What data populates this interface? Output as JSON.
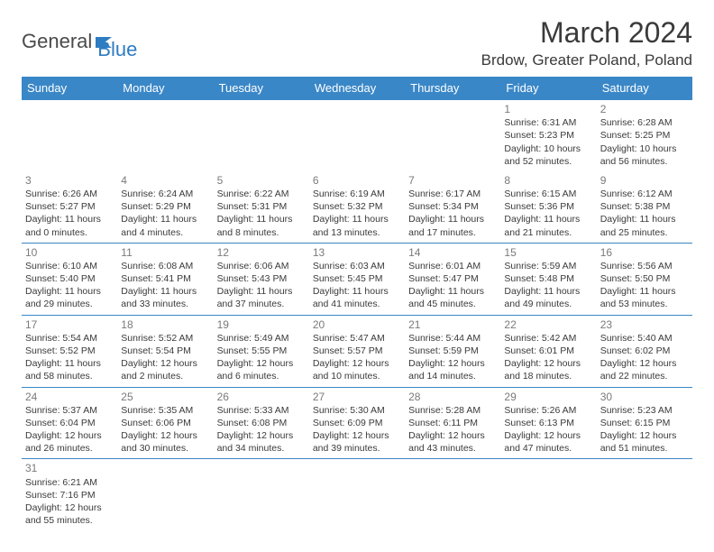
{
  "logo": {
    "part1": "General",
    "part2": "Blue"
  },
  "title": "March 2024",
  "location": "Brdow, Greater Poland, Poland",
  "header_bg": "#3a87c7",
  "row_border_color": "#3a87c7",
  "days": [
    "Sunday",
    "Monday",
    "Tuesday",
    "Wednesday",
    "Thursday",
    "Friday",
    "Saturday"
  ],
  "weeks": [
    [
      null,
      null,
      null,
      null,
      null,
      {
        "n": "1",
        "sr": "Sunrise: 6:31 AM",
        "ss": "Sunset: 5:23 PM",
        "dl1": "Daylight: 10 hours",
        "dl2": "and 52 minutes."
      },
      {
        "n": "2",
        "sr": "Sunrise: 6:28 AM",
        "ss": "Sunset: 5:25 PM",
        "dl1": "Daylight: 10 hours",
        "dl2": "and 56 minutes."
      }
    ],
    [
      {
        "n": "3",
        "sr": "Sunrise: 6:26 AM",
        "ss": "Sunset: 5:27 PM",
        "dl1": "Daylight: 11 hours",
        "dl2": "and 0 minutes."
      },
      {
        "n": "4",
        "sr": "Sunrise: 6:24 AM",
        "ss": "Sunset: 5:29 PM",
        "dl1": "Daylight: 11 hours",
        "dl2": "and 4 minutes."
      },
      {
        "n": "5",
        "sr": "Sunrise: 6:22 AM",
        "ss": "Sunset: 5:31 PM",
        "dl1": "Daylight: 11 hours",
        "dl2": "and 8 minutes."
      },
      {
        "n": "6",
        "sr": "Sunrise: 6:19 AM",
        "ss": "Sunset: 5:32 PM",
        "dl1": "Daylight: 11 hours",
        "dl2": "and 13 minutes."
      },
      {
        "n": "7",
        "sr": "Sunrise: 6:17 AM",
        "ss": "Sunset: 5:34 PM",
        "dl1": "Daylight: 11 hours",
        "dl2": "and 17 minutes."
      },
      {
        "n": "8",
        "sr": "Sunrise: 6:15 AM",
        "ss": "Sunset: 5:36 PM",
        "dl1": "Daylight: 11 hours",
        "dl2": "and 21 minutes."
      },
      {
        "n": "9",
        "sr": "Sunrise: 6:12 AM",
        "ss": "Sunset: 5:38 PM",
        "dl1": "Daylight: 11 hours",
        "dl2": "and 25 minutes."
      }
    ],
    [
      {
        "n": "10",
        "sr": "Sunrise: 6:10 AM",
        "ss": "Sunset: 5:40 PM",
        "dl1": "Daylight: 11 hours",
        "dl2": "and 29 minutes."
      },
      {
        "n": "11",
        "sr": "Sunrise: 6:08 AM",
        "ss": "Sunset: 5:41 PM",
        "dl1": "Daylight: 11 hours",
        "dl2": "and 33 minutes."
      },
      {
        "n": "12",
        "sr": "Sunrise: 6:06 AM",
        "ss": "Sunset: 5:43 PM",
        "dl1": "Daylight: 11 hours",
        "dl2": "and 37 minutes."
      },
      {
        "n": "13",
        "sr": "Sunrise: 6:03 AM",
        "ss": "Sunset: 5:45 PM",
        "dl1": "Daylight: 11 hours",
        "dl2": "and 41 minutes."
      },
      {
        "n": "14",
        "sr": "Sunrise: 6:01 AM",
        "ss": "Sunset: 5:47 PM",
        "dl1": "Daylight: 11 hours",
        "dl2": "and 45 minutes."
      },
      {
        "n": "15",
        "sr": "Sunrise: 5:59 AM",
        "ss": "Sunset: 5:48 PM",
        "dl1": "Daylight: 11 hours",
        "dl2": "and 49 minutes."
      },
      {
        "n": "16",
        "sr": "Sunrise: 5:56 AM",
        "ss": "Sunset: 5:50 PM",
        "dl1": "Daylight: 11 hours",
        "dl2": "and 53 minutes."
      }
    ],
    [
      {
        "n": "17",
        "sr": "Sunrise: 5:54 AM",
        "ss": "Sunset: 5:52 PM",
        "dl1": "Daylight: 11 hours",
        "dl2": "and 58 minutes."
      },
      {
        "n": "18",
        "sr": "Sunrise: 5:52 AM",
        "ss": "Sunset: 5:54 PM",
        "dl1": "Daylight: 12 hours",
        "dl2": "and 2 minutes."
      },
      {
        "n": "19",
        "sr": "Sunrise: 5:49 AM",
        "ss": "Sunset: 5:55 PM",
        "dl1": "Daylight: 12 hours",
        "dl2": "and 6 minutes."
      },
      {
        "n": "20",
        "sr": "Sunrise: 5:47 AM",
        "ss": "Sunset: 5:57 PM",
        "dl1": "Daylight: 12 hours",
        "dl2": "and 10 minutes."
      },
      {
        "n": "21",
        "sr": "Sunrise: 5:44 AM",
        "ss": "Sunset: 5:59 PM",
        "dl1": "Daylight: 12 hours",
        "dl2": "and 14 minutes."
      },
      {
        "n": "22",
        "sr": "Sunrise: 5:42 AM",
        "ss": "Sunset: 6:01 PM",
        "dl1": "Daylight: 12 hours",
        "dl2": "and 18 minutes."
      },
      {
        "n": "23",
        "sr": "Sunrise: 5:40 AM",
        "ss": "Sunset: 6:02 PM",
        "dl1": "Daylight: 12 hours",
        "dl2": "and 22 minutes."
      }
    ],
    [
      {
        "n": "24",
        "sr": "Sunrise: 5:37 AM",
        "ss": "Sunset: 6:04 PM",
        "dl1": "Daylight: 12 hours",
        "dl2": "and 26 minutes."
      },
      {
        "n": "25",
        "sr": "Sunrise: 5:35 AM",
        "ss": "Sunset: 6:06 PM",
        "dl1": "Daylight: 12 hours",
        "dl2": "and 30 minutes."
      },
      {
        "n": "26",
        "sr": "Sunrise: 5:33 AM",
        "ss": "Sunset: 6:08 PM",
        "dl1": "Daylight: 12 hours",
        "dl2": "and 34 minutes."
      },
      {
        "n": "27",
        "sr": "Sunrise: 5:30 AM",
        "ss": "Sunset: 6:09 PM",
        "dl1": "Daylight: 12 hours",
        "dl2": "and 39 minutes."
      },
      {
        "n": "28",
        "sr": "Sunrise: 5:28 AM",
        "ss": "Sunset: 6:11 PM",
        "dl1": "Daylight: 12 hours",
        "dl2": "and 43 minutes."
      },
      {
        "n": "29",
        "sr": "Sunrise: 5:26 AM",
        "ss": "Sunset: 6:13 PM",
        "dl1": "Daylight: 12 hours",
        "dl2": "and 47 minutes."
      },
      {
        "n": "30",
        "sr": "Sunrise: 5:23 AM",
        "ss": "Sunset: 6:15 PM",
        "dl1": "Daylight: 12 hours",
        "dl2": "and 51 minutes."
      }
    ],
    [
      {
        "n": "31",
        "sr": "Sunrise: 6:21 AM",
        "ss": "Sunset: 7:16 PM",
        "dl1": "Daylight: 12 hours",
        "dl2": "and 55 minutes."
      },
      null,
      null,
      null,
      null,
      null,
      null
    ]
  ]
}
